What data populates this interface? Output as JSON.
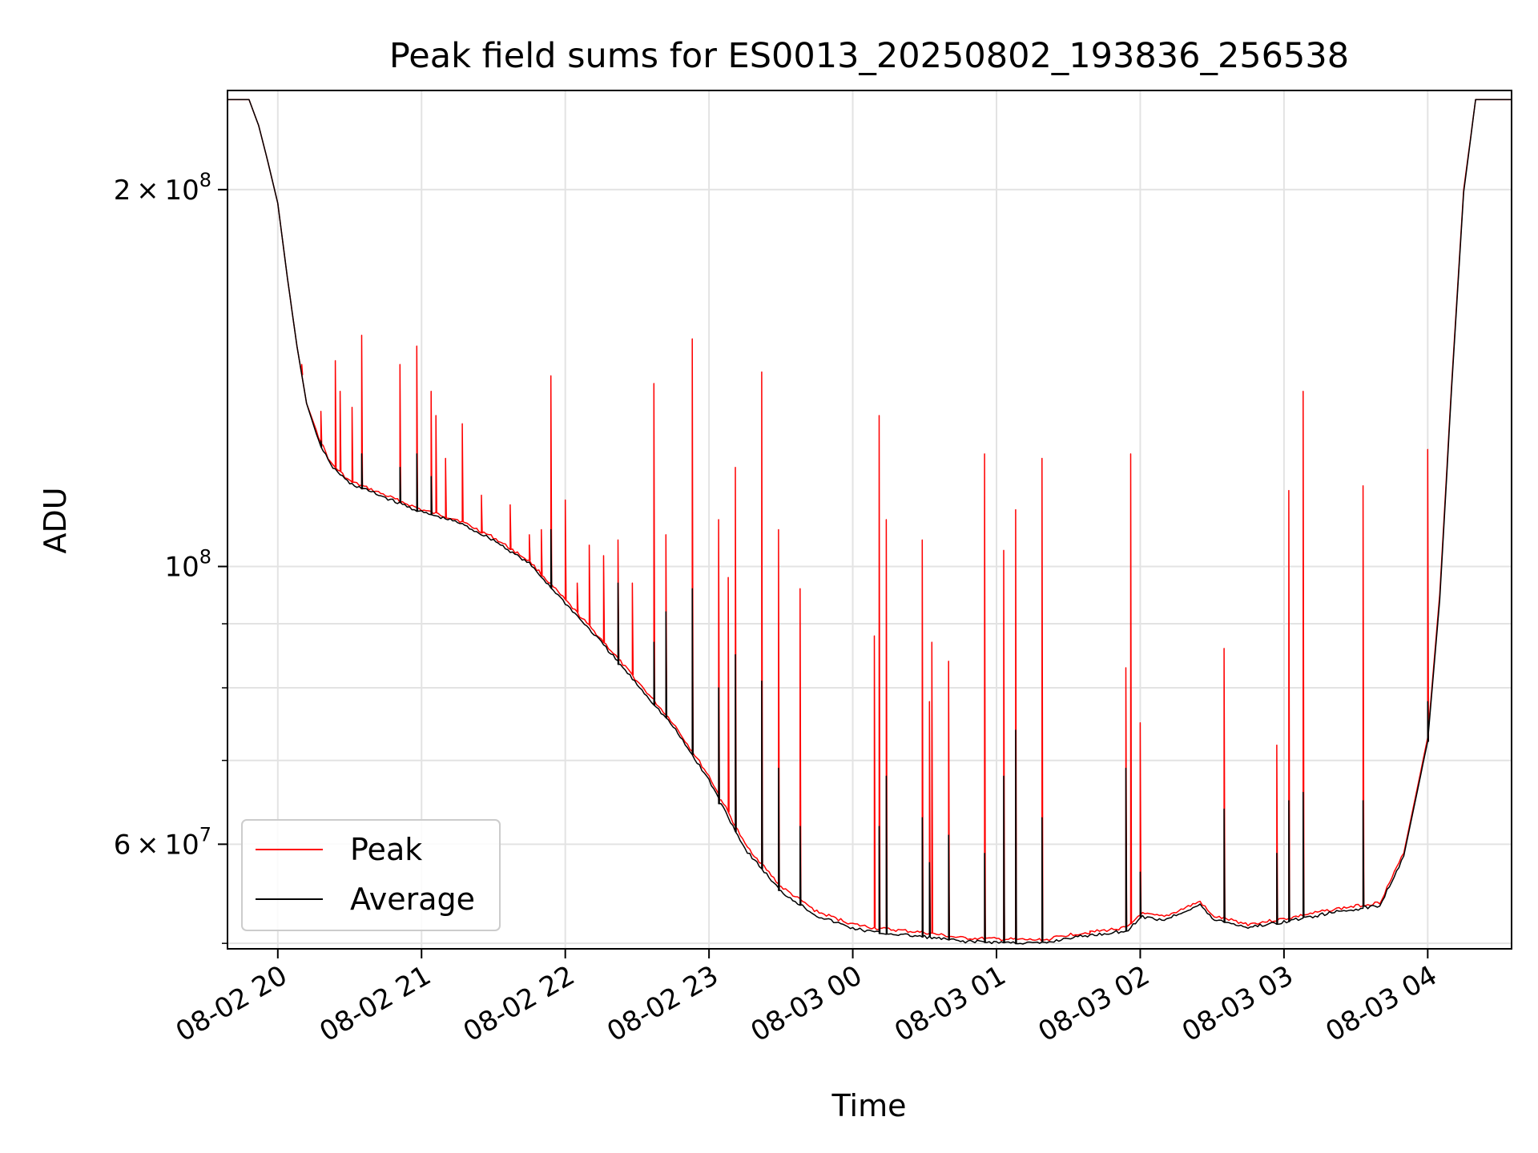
{
  "chart_data": {
    "type": "line",
    "title": "Peak field sums for ES0013_20250802_193836_256538",
    "xlabel": "Time",
    "ylabel": "ADU",
    "yscale": "log",
    "ylim": [
      49500000,
      240000000
    ],
    "xlim": [
      "08-02 19:39",
      "08-03 04:35"
    ],
    "grid": true,
    "legend_placement": "lower-left",
    "x_ticks": [
      {
        "t": "08-02 20:00",
        "label": "08-02 20"
      },
      {
        "t": "08-02 21:00",
        "label": "08-02 21"
      },
      {
        "t": "08-02 22:00",
        "label": "08-02 22"
      },
      {
        "t": "08-02 23:00",
        "label": "08-02 23"
      },
      {
        "t": "08-03 00:00",
        "label": "08-03 00"
      },
      {
        "t": "08-03 01:00",
        "label": "08-03 01"
      },
      {
        "t": "08-03 02:00",
        "label": "08-03 02"
      },
      {
        "t": "08-03 03:00",
        "label": "08-03 03"
      },
      {
        "t": "08-03 04:00",
        "label": "08-03 04"
      }
    ],
    "y_ticks_major": [
      {
        "value": 200000000,
        "mant": "2",
        "times": "×",
        "base": "10",
        "exp": "8"
      },
      {
        "value": 100000000,
        "mant": "",
        "times": "",
        "base": "10",
        "exp": "8"
      },
      {
        "value": 60000000,
        "mant": "6",
        "times": "×",
        "base": "10",
        "exp": "7"
      }
    ],
    "y_ticks_minor": [
      50000000,
      70000000,
      80000000,
      90000000
    ],
    "colors": {
      "peak": "#ff0000",
      "average": "#000000",
      "grid": "#e3e3e3"
    },
    "series": [
      {
        "name": "Peak",
        "color": "#ff0000",
        "baseline": [
          [
            "08-02 19:39",
            236000000
          ],
          [
            "08-02 19:48",
            236000000
          ],
          [
            "08-02 19:52",
            225000000
          ],
          [
            "08-02 19:56",
            210000000
          ],
          [
            "08-02 20:00",
            195000000
          ],
          [
            "08-02 20:04",
            170000000
          ],
          [
            "08-02 20:08",
            150000000
          ],
          [
            "08-02 20:12",
            135000000
          ],
          [
            "08-02 20:17",
            127000000
          ],
          [
            "08-02 20:22",
            121000000
          ],
          [
            "08-02 20:30",
            117000000
          ],
          [
            "08-02 20:40",
            115000000
          ],
          [
            "08-02 21:00",
            111000000
          ],
          [
            "08-02 21:15",
            109000000
          ],
          [
            "08-02 21:30",
            105500000
          ],
          [
            "08-02 21:45",
            101000000
          ],
          [
            "08-02 22:00",
            94000000
          ],
          [
            "08-02 22:15",
            87500000
          ],
          [
            "08-02 22:30",
            81000000
          ],
          [
            "08-02 22:45",
            75000000
          ],
          [
            "08-02 23:00",
            68000000
          ],
          [
            "08-02 23:15",
            60000000
          ],
          [
            "08-02 23:30",
            55500000
          ],
          [
            "08-02 23:45",
            53000000
          ],
          [
            "08-03 00:00",
            51800000
          ],
          [
            "08-03 00:10",
            51400000
          ],
          [
            "08-03 00:30",
            51000000
          ],
          [
            "08-03 00:45",
            50500000
          ],
          [
            "08-03 01:00",
            50400000
          ],
          [
            "08-03 01:20",
            50300000
          ],
          [
            "08-03 01:30",
            50800000
          ],
          [
            "08-03 01:45",
            51200000
          ],
          [
            "08-03 01:55",
            51500000
          ],
          [
            "08-03 02:00",
            52800000
          ],
          [
            "08-03 02:10",
            52500000
          ],
          [
            "08-03 02:20",
            53500000
          ],
          [
            "08-03 02:25",
            54000000
          ],
          [
            "08-03 02:30",
            52600000
          ],
          [
            "08-03 02:45",
            51800000
          ],
          [
            "08-03 03:00",
            52300000
          ],
          [
            "08-03 03:20",
            53200000
          ],
          [
            "08-03 03:40",
            53900000
          ],
          [
            "08-03 03:50",
            59000000
          ],
          [
            "08-03 04:00",
            73000000
          ],
          [
            "08-03 04:05",
            95000000
          ],
          [
            "08-03 04:10",
            140000000
          ],
          [
            "08-03 04:15",
            200000000
          ],
          [
            "08-03 04:20",
            236000000
          ],
          [
            "08-03 04:35",
            236000000
          ]
        ],
        "spikes": [
          [
            "08-02 20:10",
            145000000
          ],
          [
            "08-02 20:18",
            133000000
          ],
          [
            "08-02 20:24",
            146000000
          ],
          [
            "08-02 20:26",
            138000000
          ],
          [
            "08-02 20:31",
            134000000
          ],
          [
            "08-02 20:35",
            153000000
          ],
          [
            "08-02 20:51",
            145000000
          ],
          [
            "08-02 20:58",
            150000000
          ],
          [
            "08-02 21:04",
            138000000
          ],
          [
            "08-02 21:06",
            132000000
          ],
          [
            "08-02 21:10",
            122000000
          ],
          [
            "08-02 21:17",
            130000000
          ],
          [
            "08-02 21:25",
            114000000
          ],
          [
            "08-02 21:37",
            112000000
          ],
          [
            "08-02 21:45",
            106000000
          ],
          [
            "08-02 21:50",
            107000000
          ],
          [
            "08-02 21:54",
            142000000
          ],
          [
            "08-02 22:00",
            113000000
          ],
          [
            "08-02 22:05",
            97000000
          ],
          [
            "08-02 22:10",
            104000000
          ],
          [
            "08-02 22:16",
            102000000
          ],
          [
            "08-02 22:22",
            105000000
          ],
          [
            "08-02 22:28",
            97000000
          ],
          [
            "08-02 22:37",
            140000000
          ],
          [
            "08-02 22:42",
            106000000
          ],
          [
            "08-02 22:53",
            152000000
          ],
          [
            "08-02 23:04",
            109000000
          ],
          [
            "08-02 23:08",
            98000000
          ],
          [
            "08-02 23:11",
            120000000
          ],
          [
            "08-02 23:22",
            143000000
          ],
          [
            "08-02 23:29",
            107000000
          ],
          [
            "08-02 23:38",
            96000000
          ],
          [
            "08-03 00:09",
            88000000
          ],
          [
            "08-03 00:11",
            132000000
          ],
          [
            "08-03 00:14",
            109000000
          ],
          [
            "08-03 00:29",
            105000000
          ],
          [
            "08-03 00:32",
            78000000
          ],
          [
            "08-03 00:33",
            87000000
          ],
          [
            "08-03 00:40",
            84000000
          ],
          [
            "08-03 00:55",
            123000000
          ],
          [
            "08-03 01:03",
            103000000
          ],
          [
            "08-03 01:08",
            111000000
          ],
          [
            "08-03 01:19",
            122000000
          ],
          [
            "08-03 01:39",
            51000000
          ],
          [
            "08-03 01:54",
            83000000
          ],
          [
            "08-03 01:56",
            123000000
          ],
          [
            "08-03 02:00",
            75000000
          ],
          [
            "08-03 02:35",
            86000000
          ],
          [
            "08-03 02:57",
            72000000
          ],
          [
            "08-03 03:02",
            115000000
          ],
          [
            "08-03 03:08",
            138000000
          ],
          [
            "08-03 03:33",
            116000000
          ],
          [
            "08-03 04:00",
            124000000
          ]
        ]
      },
      {
        "name": "Average",
        "color": "#000000",
        "baseline": [
          [
            "08-02 19:39",
            236000000
          ],
          [
            "08-02 19:48",
            236000000
          ],
          [
            "08-02 19:52",
            225000000
          ],
          [
            "08-02 19:56",
            210000000
          ],
          [
            "08-02 20:00",
            195000000
          ],
          [
            "08-02 20:04",
            170000000
          ],
          [
            "08-02 20:08",
            150000000
          ],
          [
            "08-02 20:12",
            135000000
          ],
          [
            "08-02 20:17",
            126000000
          ],
          [
            "08-02 20:22",
            120500000
          ],
          [
            "08-02 20:30",
            116500000
          ],
          [
            "08-02 20:40",
            114500000
          ],
          [
            "08-02 21:00",
            110500000
          ],
          [
            "08-02 21:15",
            108500000
          ],
          [
            "08-02 21:30",
            105000000
          ],
          [
            "08-02 21:45",
            100500000
          ],
          [
            "08-02 22:00",
            93500000
          ],
          [
            "08-02 22:15",
            87000000
          ],
          [
            "08-02 22:30",
            80500000
          ],
          [
            "08-02 22:45",
            74500000
          ],
          [
            "08-02 23:00",
            67500000
          ],
          [
            "08-02 23:15",
            59500000
          ],
          [
            "08-02 23:30",
            55000000
          ],
          [
            "08-02 23:45",
            52600000
          ],
          [
            "08-03 00:00",
            51400000
          ],
          [
            "08-03 00:10",
            51000000
          ],
          [
            "08-03 00:30",
            50600000
          ],
          [
            "08-03 00:45",
            50200000
          ],
          [
            "08-03 01:00",
            50100000
          ],
          [
            "08-03 01:20",
            50000000
          ],
          [
            "08-03 01:30",
            50500000
          ],
          [
            "08-03 01:45",
            50900000
          ],
          [
            "08-03 01:55",
            51200000
          ],
          [
            "08-03 02:00",
            52500000
          ],
          [
            "08-03 02:10",
            52200000
          ],
          [
            "08-03 02:20",
            53200000
          ],
          [
            "08-03 02:25",
            53700000
          ],
          [
            "08-03 02:30",
            52300000
          ],
          [
            "08-03 02:45",
            51500000
          ],
          [
            "08-03 03:00",
            52000000
          ],
          [
            "08-03 03:20",
            52900000
          ],
          [
            "08-03 03:40",
            53600000
          ],
          [
            "08-03 03:50",
            58700000
          ],
          [
            "08-03 04:00",
            72500000
          ],
          [
            "08-03 04:05",
            94000000
          ],
          [
            "08-03 04:10",
            139000000
          ],
          [
            "08-03 04:15",
            199000000
          ],
          [
            "08-03 04:20",
            236000000
          ],
          [
            "08-03 04:35",
            236000000
          ]
        ],
        "spikes": [
          [
            "08-02 20:18",
            126000000
          ],
          [
            "08-02 20:35",
            123000000
          ],
          [
            "08-02 20:51",
            120000000
          ],
          [
            "08-02 20:58",
            123000000
          ],
          [
            "08-02 21:04",
            118000000
          ],
          [
            "08-02 21:54",
            107000000
          ],
          [
            "08-02 22:22",
            97000000
          ],
          [
            "08-02 22:37",
            87000000
          ],
          [
            "08-02 22:42",
            92000000
          ],
          [
            "08-02 22:53",
            96000000
          ],
          [
            "08-02 23:04",
            80000000
          ],
          [
            "08-02 23:11",
            85000000
          ],
          [
            "08-02 23:22",
            81000000
          ],
          [
            "08-02 23:29",
            69000000
          ],
          [
            "08-02 23:38",
            62000000
          ],
          [
            "08-03 00:11",
            62000000
          ],
          [
            "08-03 00:14",
            68000000
          ],
          [
            "08-03 00:29",
            63000000
          ],
          [
            "08-03 00:32",
            58000000
          ],
          [
            "08-03 00:40",
            61000000
          ],
          [
            "08-03 00:55",
            59000000
          ],
          [
            "08-03 01:03",
            68000000
          ],
          [
            "08-03 01:08",
            74000000
          ],
          [
            "08-03 01:19",
            63000000
          ],
          [
            "08-03 01:54",
            69000000
          ],
          [
            "08-03 02:00",
            57000000
          ],
          [
            "08-03 02:35",
            64000000
          ],
          [
            "08-03 02:57",
            59000000
          ],
          [
            "08-03 03:02",
            65000000
          ],
          [
            "08-03 03:08",
            66000000
          ],
          [
            "08-03 03:33",
            65000000
          ],
          [
            "08-03 04:00",
            78000000
          ]
        ]
      }
    ]
  }
}
